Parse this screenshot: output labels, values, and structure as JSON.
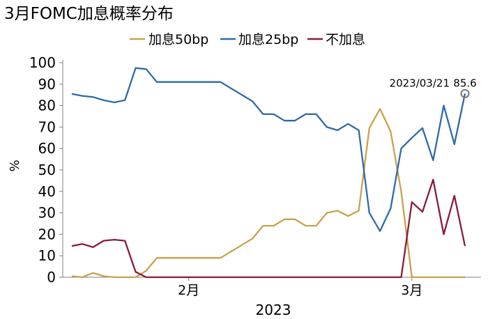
{
  "chart_data": {
    "type": "line",
    "title": "3月FOMC加息概率分布",
    "ylabel": "%",
    "xlabel": "2023",
    "ylim": [
      0,
      100
    ],
    "yticks": [
      "0",
      "10",
      "20",
      "30",
      "40",
      "50",
      "60",
      "70",
      "80",
      "90",
      "100"
    ],
    "xticks": [
      {
        "label": "2月",
        "index": 11
      },
      {
        "label": "3月",
        "index": 32
      }
    ],
    "legend_position": "top",
    "grid": false,
    "x": [
      0,
      1,
      2,
      3,
      4,
      5,
      6,
      7,
      8,
      9,
      10,
      11,
      12,
      13,
      14,
      15,
      16,
      17,
      18,
      19,
      20,
      21,
      22,
      23,
      24,
      25,
      26,
      27,
      28,
      29,
      30,
      31,
      32,
      33,
      34,
      35,
      36,
      37
    ],
    "series": [
      {
        "name": "加息50bp",
        "color": "#c9a14b",
        "values": [
          0.5,
          0,
          2,
          0.5,
          0,
          0,
          0,
          3,
          9,
          9,
          9,
          9,
          9,
          9,
          9,
          12,
          15,
          18,
          24,
          24,
          27,
          27,
          24,
          24,
          30,
          31,
          28.5,
          31,
          69.5,
          78.5,
          68,
          40,
          0,
          0,
          0,
          0,
          0,
          0
        ]
      },
      {
        "name": "加息25bp",
        "color": "#2e6aa8",
        "values": [
          85.5,
          84.5,
          84,
          82.5,
          81.5,
          82.5,
          97.5,
          97,
          91,
          91,
          91,
          91,
          91,
          91,
          91,
          88,
          85,
          82,
          76,
          76,
          73,
          73,
          76,
          76,
          70,
          68.5,
          71.5,
          68.5,
          30,
          21.5,
          32,
          60,
          65,
          69.5,
          54.5,
          80,
          62,
          85.6
        ]
      },
      {
        "name": "不加息",
        "color": "#8b1a3a",
        "values": [
          14.5,
          15.5,
          14,
          17,
          17.5,
          17,
          2.5,
          0,
          0,
          0,
          0,
          0,
          0,
          0,
          0,
          0,
          0,
          0,
          0,
          0,
          0,
          0,
          0,
          0,
          0,
          0,
          0,
          0,
          0,
          0,
          0,
          0,
          35,
          30.5,
          45.5,
          20,
          38,
          14.5
        ]
      }
    ],
    "annotation": {
      "date": "2023/03/21",
      "value": "85.6",
      "series": "加息25bp",
      "index": 37
    }
  }
}
